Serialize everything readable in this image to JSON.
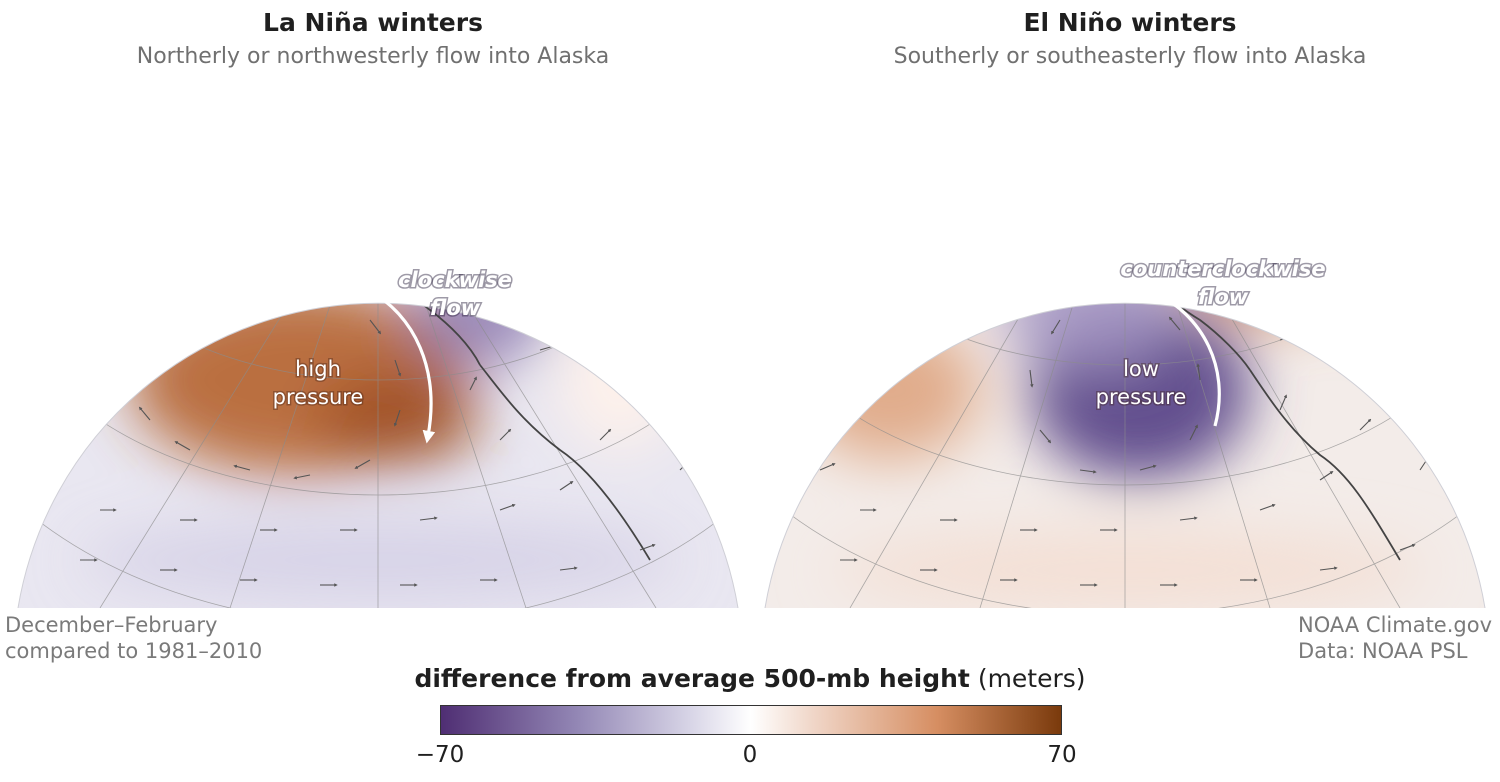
{
  "panels": [
    {
      "title": "La Niña winters",
      "subtitle": "Northerly or northwesterly flow into Alaska",
      "center_label_line1": "high",
      "center_label_line2": "pressure",
      "flow_label_line1": "clockwise",
      "flow_label_line2": "flow",
      "anomaly": "positive"
    },
    {
      "title": "El Niño winters",
      "subtitle": "Southerly or southeasterly flow into Alaska",
      "center_label_line1": "low",
      "center_label_line2": "pressure",
      "flow_label_line1": "counterclockwise",
      "flow_label_line2": "flow",
      "anomaly": "negative"
    }
  ],
  "notes": {
    "period_line1": "December–February",
    "period_line2": "compared to 1981–2010",
    "credit_line1": "NOAA Climate.gov",
    "credit_line2": "Data: NOAA PSL"
  },
  "legend": {
    "title_bold": "difference from average 500-mb height",
    "title_unit": "(meters)",
    "min_label": "−70",
    "mid_label": "0",
    "max_label": "70",
    "colors": {
      "negative": "#4f2e73",
      "neutral": "#ffffff",
      "positive": "#7a3a0c"
    }
  }
}
